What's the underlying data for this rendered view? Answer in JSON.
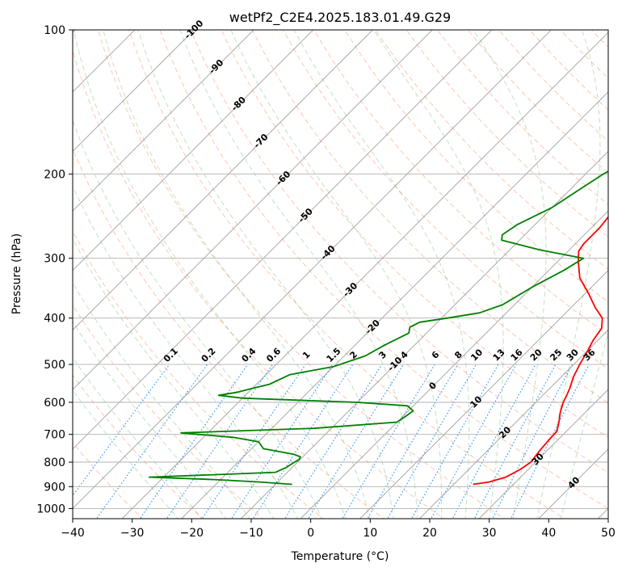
{
  "chart_data": {
    "type": "line",
    "title": "wetPf2_C2E4.2025.183.01.49.G29",
    "xlabel": "Temperature (°C)",
    "ylabel": "Pressure (hPa)",
    "xlim": [
      -40,
      50
    ],
    "ylim": [
      1050,
      100
    ],
    "y_scale": "log",
    "grid": true,
    "x_ticks": [
      -40,
      -30,
      -20,
      -10,
      0,
      10,
      20,
      30,
      40,
      50
    ],
    "y_ticks": [
      100,
      200,
      300,
      400,
      500,
      600,
      700,
      800,
      900,
      1000
    ],
    "colors": {
      "temperature": "#ff0000",
      "dewpoint": "#008000",
      "dry_adiabat": "#ff7f50",
      "moist_adiabat": "#2ca02c",
      "mixing_ratio": "#1e90ff",
      "isotherm": "#808080",
      "isotherm_label": "#1f77b4",
      "isotherm_label_warm": "#d62728",
      "isotherm_label_zero": "#808080"
    },
    "series": [
      {
        "role": "temperature",
        "points": [
          [
            23.2,
            890
          ],
          [
            25.5,
            880
          ],
          [
            27.5,
            860
          ],
          [
            28.6,
            830
          ],
          [
            29.2,
            800
          ],
          [
            28.8,
            760
          ],
          [
            28.5,
            720
          ],
          [
            28.4,
            690
          ],
          [
            27.2,
            660
          ],
          [
            25.8,
            630
          ],
          [
            24.6,
            600
          ],
          [
            24.0,
            580
          ],
          [
            23.3,
            560
          ],
          [
            22.0,
            530
          ],
          [
            21.0,
            500
          ],
          [
            20.1,
            470
          ],
          [
            19.2,
            445
          ],
          [
            18.6,
            420
          ],
          [
            17.0,
            400
          ],
          [
            14.0,
            380
          ],
          [
            10.5,
            355
          ],
          [
            6.5,
            330
          ],
          [
            3.5,
            305
          ],
          [
            1.8,
            290
          ],
          [
            1.4,
            280
          ],
          [
            1.4,
            260
          ],
          [
            1.0,
            245
          ],
          [
            0.0,
            225
          ],
          [
            -1.2,
            200
          ],
          [
            -1.5,
            190
          ],
          [
            -1.0,
            175
          ],
          [
            -0.9,
            160
          ],
          [
            -1.3,
            145
          ],
          [
            -1.5,
            130
          ],
          [
            -0.5,
            125
          ],
          [
            1.5,
            120
          ],
          [
            3.2,
            115
          ],
          [
            4.5,
            111
          ],
          [
            6.2,
            105
          ],
          [
            8.0,
            100
          ]
        ]
      },
      {
        "role": "dewpoint",
        "points": [
          [
            -7.2,
            890
          ],
          [
            -13.0,
            880
          ],
          [
            -21.0,
            870
          ],
          [
            -32.4,
            860
          ],
          [
            -22.0,
            850
          ],
          [
            -12.0,
            840
          ],
          [
            -11.0,
            820
          ],
          [
            -10.5,
            800
          ],
          [
            -10.2,
            790
          ],
          [
            -10.4,
            780
          ],
          [
            -12.0,
            770
          ],
          [
            -18.0,
            750
          ],
          [
            -20.0,
            725
          ],
          [
            -25.0,
            710
          ],
          [
            -34.5,
            695
          ],
          [
            -13.0,
            680
          ],
          [
            0.0,
            660
          ],
          [
            0.5,
            640
          ],
          [
            0.8,
            625
          ],
          [
            -1.0,
            610
          ],
          [
            -10.0,
            600
          ],
          [
            -30.0,
            588
          ],
          [
            -34.5,
            580
          ],
          [
            -32.0,
            572
          ],
          [
            -29.8,
            560
          ],
          [
            -27.8,
            550
          ],
          [
            -26.0,
            525
          ],
          [
            -20.0,
            505
          ],
          [
            -16.5,
            480
          ],
          [
            -15.0,
            455
          ],
          [
            -13.0,
            430
          ],
          [
            -13.8,
            418
          ],
          [
            -13.0,
            408
          ],
          [
            -9.0,
            400
          ],
          [
            -4.5,
            390
          ],
          [
            -2.0,
            375
          ],
          [
            0.0,
            345
          ],
          [
            2.5,
            318
          ],
          [
            3.8,
            300
          ],
          [
            -5.0,
            288
          ],
          [
            -13.0,
            275
          ],
          [
            -13.8,
            268
          ],
          [
            -13.0,
            255
          ],
          [
            -10.0,
            235
          ],
          [
            -8.4,
            215
          ],
          [
            -7.0,
            200
          ],
          [
            -4.0,
            180
          ],
          [
            -3.2,
            160
          ],
          [
            -1.4,
            140
          ],
          [
            -1.0,
            125
          ],
          [
            -0.2,
            115
          ],
          [
            0.5,
            108
          ],
          [
            1.0,
            103
          ],
          [
            1.3,
            100
          ]
        ]
      }
    ],
    "isotherm_labels": [
      {
        "text": "-100",
        "T": -100
      },
      {
        "text": "-90",
        "T": -90
      },
      {
        "text": "-80",
        "T": -80
      },
      {
        "text": "-70",
        "T": -70
      },
      {
        "text": "-60",
        "T": -60
      },
      {
        "text": "-50",
        "T": -50
      },
      {
        "text": "-40",
        "T": -40
      },
      {
        "text": "-30",
        "T": -30
      },
      {
        "text": "-20",
        "T": -20
      },
      {
        "text": "-10",
        "T": -10
      },
      {
        "text": "0",
        "T": 0
      },
      {
        "text": "10",
        "T": 10
      },
      {
        "text": "20",
        "T": 20
      },
      {
        "text": "30",
        "T": 30
      },
      {
        "text": "40",
        "T": 40
      }
    ],
    "mixing_ratio_labels": [
      "0.1",
      "0.2",
      "0.4",
      "0.6",
      "1",
      "1.5",
      "2",
      "3",
      "4",
      "6",
      "8",
      "10",
      "13",
      "16",
      "20",
      "25",
      "30",
      "36"
    ]
  }
}
